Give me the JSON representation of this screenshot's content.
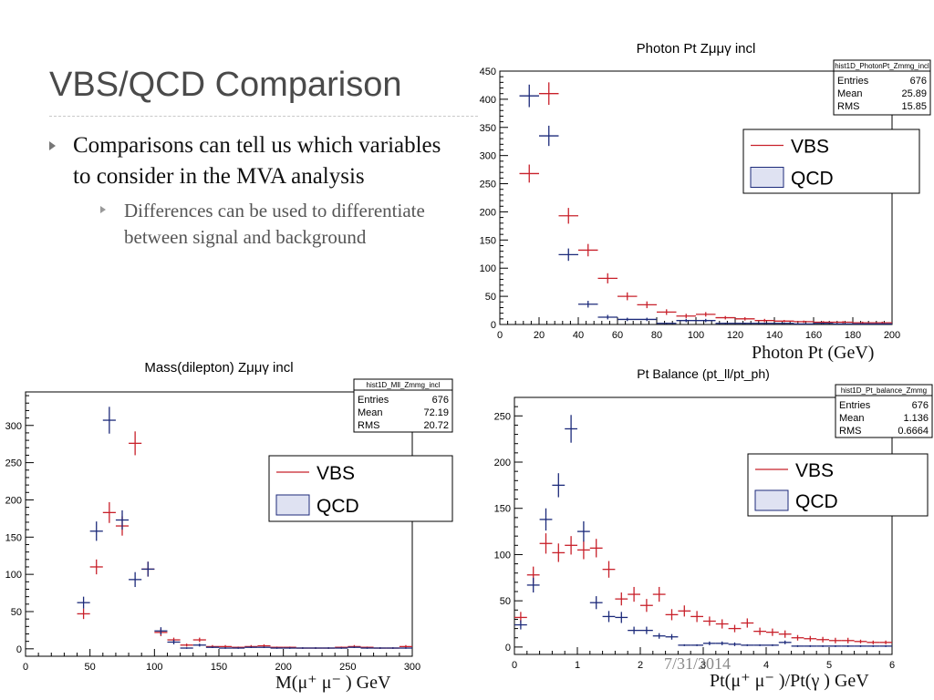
{
  "slide": {
    "title": "VBS/QCD Comparison",
    "bullet_main": "Comparisons can tell us which variables to consider in the MVA analysis",
    "bullet_sub": "Differences can be used to differentiate between signal and background",
    "date": "7/31/2014"
  },
  "captions": {
    "photon_pt": "Photon Pt (GeV)",
    "mass": "M(μ⁺ μ⁻ ) GeV",
    "balance": "Pt(μ⁺ μ⁻  )/Pt(γ ) GeV"
  },
  "colors": {
    "vbs": "#c8202a",
    "qcd": "#1c2a7a",
    "frame": "#000000"
  },
  "chart_data": [
    {
      "type": "scatter",
      "title": "Photon Pt Zμμγ incl",
      "xlabel": "Photon Pt (GeV)",
      "xlim": [
        0,
        200
      ],
      "ylim": [
        0,
        450
      ],
      "xticks": [
        0,
        20,
        40,
        60,
        80,
        100,
        120,
        140,
        160,
        180,
        200
      ],
      "yticks": [
        0,
        50,
        100,
        150,
        200,
        250,
        300,
        350,
        400,
        450
      ],
      "bin_width": 10,
      "stats": {
        "name": "hist1D_PhotonPt_Zmmg_incl",
        "rows": [
          [
            "Entries",
            "676"
          ],
          [
            "Mean",
            "25.89"
          ],
          [
            "RMS",
            "15.85"
          ]
        ]
      },
      "legend": {
        "entries": [
          "VBS",
          "QCD"
        ],
        "placement": "right"
      },
      "series": [
        {
          "name": "VBS",
          "x": [
            15,
            25,
            35,
            45,
            55,
            65,
            75,
            85,
            95,
            105,
            115,
            125,
            135,
            145,
            155,
            165,
            175,
            185,
            195
          ],
          "values": [
            268,
            410,
            193,
            132,
            82,
            50,
            35,
            22,
            15,
            18,
            12,
            10,
            7,
            6,
            5,
            4,
            4,
            3,
            3
          ],
          "errors": [
            16,
            20,
            14,
            11,
            9,
            7,
            6,
            5,
            4,
            4,
            3,
            3,
            3,
            2,
            2,
            2,
            2,
            2,
            2
          ]
        },
        {
          "name": "QCD",
          "x": [
            15,
            25,
            35,
            45,
            55,
            65,
            75,
            85,
            95,
            105,
            115,
            125,
            135,
            145,
            155,
            165,
            175,
            185,
            195
          ],
          "values": [
            406,
            335,
            124,
            36,
            13,
            9,
            9,
            2,
            7,
            7,
            2,
            2,
            2,
            2,
            1,
            2,
            1,
            1,
            1
          ],
          "errors": [
            20,
            18,
            11,
            6,
            4,
            3,
            3,
            1,
            3,
            3,
            1,
            1,
            1,
            1,
            1,
            1,
            1,
            1,
            1
          ]
        }
      ]
    },
    {
      "type": "scatter",
      "title": "Mass(dilepton) Zμμγ incl",
      "xlabel": "M(μ⁺ μ⁻ ) GeV",
      "xlim": [
        0,
        300
      ],
      "ylim": [
        -10,
        345
      ],
      "xticks": [
        0,
        50,
        100,
        150,
        200,
        250,
        300
      ],
      "yticks": [
        0,
        50,
        100,
        150,
        200,
        250,
        300
      ],
      "bin_width": 10,
      "stats": {
        "name": "hist1D_Mll_Zmmg_incl",
        "rows": [
          [
            "Entries",
            "676"
          ],
          [
            "Mean",
            "72.19"
          ],
          [
            "RMS",
            "20.72"
          ]
        ]
      },
      "legend": {
        "entries": [
          "VBS",
          "QCD"
        ],
        "placement": "right"
      },
      "series": [
        {
          "name": "VBS",
          "x": [
            45,
            55,
            65,
            75,
            85,
            95,
            105,
            115,
            125,
            135,
            145,
            155,
            165,
            175,
            185,
            195,
            205,
            215,
            225,
            235,
            245,
            255,
            265,
            275,
            285,
            295
          ],
          "values": [
            47,
            110,
            183,
            165,
            276,
            107,
            22,
            12,
            5,
            12,
            3,
            3,
            2,
            3,
            4,
            2,
            2,
            1,
            1,
            1,
            2,
            3,
            2,
            1,
            1,
            3
          ],
          "errors": [
            7,
            10,
            14,
            13,
            16,
            10,
            5,
            3,
            2,
            3,
            2,
            2,
            1,
            2,
            2,
            1,
            1,
            1,
            1,
            1,
            1,
            2,
            1,
            1,
            1,
            2
          ]
        },
        {
          "name": "QCD",
          "x": [
            45,
            55,
            65,
            75,
            85,
            95,
            105,
            115,
            125,
            135,
            145,
            155,
            165,
            175,
            185,
            195,
            205,
            215,
            225,
            235,
            245,
            255,
            265,
            275,
            285,
            295
          ],
          "values": [
            62,
            158,
            307,
            173,
            93,
            107,
            24,
            9,
            1,
            5,
            2,
            1,
            1,
            2,
            2,
            1,
            1,
            1,
            1,
            1,
            1,
            2,
            1,
            1,
            1,
            1
          ],
          "errors": [
            8,
            13,
            18,
            13,
            10,
            10,
            5,
            3,
            1,
            2,
            1,
            1,
            1,
            1,
            1,
            1,
            1,
            1,
            1,
            1,
            1,
            1,
            1,
            1,
            1,
            1
          ]
        }
      ]
    },
    {
      "type": "scatter",
      "title": "Pt Balance (pt_ll/pt_ph)",
      "xlabel": "Pt(μ⁺ μ⁻  )/Pt(γ ) GeV",
      "xlim": [
        0,
        6
      ],
      "ylim": [
        -8,
        270
      ],
      "xticks": [
        0,
        1,
        2,
        3,
        4,
        5,
        6
      ],
      "yticks": [
        0,
        50,
        100,
        150,
        200,
        250
      ],
      "bin_width": 0.2,
      "stats": {
        "name": "hist1D_Pt_balance_Zmmg",
        "rows": [
          [
            "Entries",
            "676"
          ],
          [
            "Mean",
            "1.136"
          ],
          [
            "RMS",
            "0.6664"
          ]
        ]
      },
      "legend": {
        "entries": [
          "VBS",
          "QCD"
        ],
        "placement": "right"
      },
      "series": [
        {
          "name": "VBS",
          "x": [
            0.1,
            0.3,
            0.5,
            0.7,
            0.9,
            1.1,
            1.3,
            1.5,
            1.7,
            1.9,
            2.1,
            2.3,
            2.5,
            2.7,
            2.9,
            3.1,
            3.3,
            3.5,
            3.7,
            3.9,
            4.1,
            4.3,
            4.5,
            4.7,
            4.9,
            5.1,
            5.3,
            5.5,
            5.7,
            5.9
          ],
          "values": [
            32,
            78,
            112,
            102,
            110,
            105,
            107,
            84,
            52,
            57,
            45,
            57,
            35,
            39,
            33,
            28,
            25,
            20,
            26,
            17,
            16,
            14,
            10,
            9,
            8,
            7,
            7,
            6,
            5,
            5
          ],
          "errors": [
            6,
            9,
            11,
            10,
            10,
            10,
            10,
            9,
            7,
            8,
            7,
            8,
            6,
            6,
            6,
            5,
            5,
            4,
            5,
            4,
            4,
            4,
            3,
            3,
            3,
            3,
            3,
            2,
            2,
            2
          ]
        },
        {
          "name": "QCD",
          "x": [
            0.1,
            0.3,
            0.5,
            0.7,
            0.9,
            1.1,
            1.3,
            1.5,
            1.7,
            1.9,
            2.1,
            2.3,
            2.5,
            2.7,
            2.9,
            3.1,
            3.3,
            3.5,
            3.7,
            3.9,
            4.1,
            4.3,
            4.5,
            4.7,
            4.9,
            5.1,
            5.3,
            5.5,
            5.7,
            5.9
          ],
          "values": [
            24,
            67,
            138,
            175,
            236,
            125,
            48,
            33,
            32,
            18,
            18,
            12,
            11,
            2,
            2,
            4,
            4,
            3,
            2,
            2,
            2,
            5,
            1,
            1,
            1,
            1,
            1,
            1,
            1,
            1
          ],
          "errors": [
            5,
            8,
            12,
            13,
            15,
            11,
            7,
            6,
            6,
            4,
            4,
            3,
            3,
            1,
            1,
            2,
            2,
            2,
            1,
            1,
            1,
            2,
            1,
            1,
            1,
            1,
            1,
            1,
            1,
            1
          ]
        }
      ]
    }
  ]
}
